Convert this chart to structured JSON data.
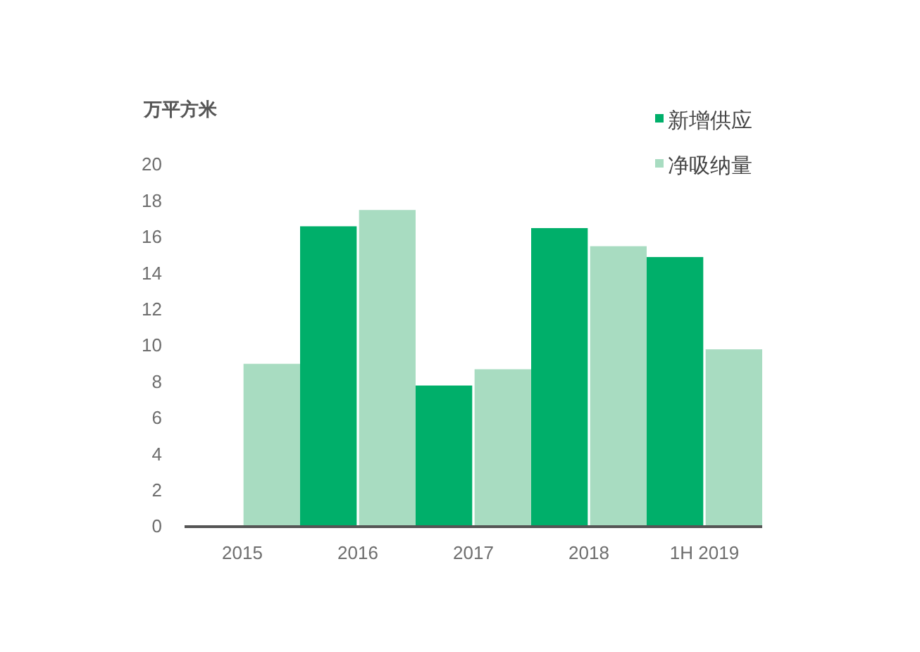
{
  "chart_data": {
    "type": "bar",
    "ylabel": "万平方米",
    "categories": [
      "2015",
      "2016",
      "2017",
      "2018",
      "1H 2019"
    ],
    "series": [
      {
        "name": "新增供应",
        "color": "#00af6a",
        "values": [
          null,
          16.6,
          7.8,
          16.5,
          14.9
        ]
      },
      {
        "name": "净吸纳量",
        "color": "#a8dcc1",
        "values": [
          9.0,
          17.5,
          8.7,
          15.5,
          9.8
        ]
      }
    ],
    "ylim": [
      0,
      20
    ],
    "yticks": [
      0,
      2,
      4,
      6,
      8,
      10,
      12,
      14,
      16,
      18,
      20
    ],
    "legend": "top right"
  }
}
